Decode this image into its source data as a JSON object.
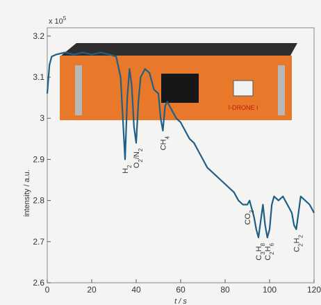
{
  "chart_data": {
    "type": "line",
    "xlabel": "t / s",
    "ylabel": "intensity / a.u.",
    "y_scale_label": "x 10",
    "y_scale_exp": "5",
    "xlim": [
      0,
      120
    ],
    "ylim": [
      2.6,
      3.22
    ],
    "x_ticks": [
      "0",
      "20",
      "40",
      "60",
      "80",
      "100",
      "120"
    ],
    "y_ticks": [
      "2.6",
      "2.7",
      "2.8",
      "2.9",
      "3",
      "3.1",
      "3.2"
    ],
    "grid": false,
    "series": [
      {
        "color": "#1f5f86",
        "points": [
          [
            0,
            3.06
          ],
          [
            1,
            3.13
          ],
          [
            2,
            3.15
          ],
          [
            4,
            3.155
          ],
          [
            8,
            3.16
          ],
          [
            12,
            3.155
          ],
          [
            16,
            3.16
          ],
          [
            20,
            3.155
          ],
          [
            24,
            3.16
          ],
          [
            28,
            3.155
          ],
          [
            31,
            3.15
          ],
          [
            33,
            3.1
          ],
          [
            34,
            3.0
          ],
          [
            35,
            2.9
          ],
          [
            36,
            3.05
          ],
          [
            37,
            3.12
          ],
          [
            38,
            3.08
          ],
          [
            39,
            2.98
          ],
          [
            40,
            2.94
          ],
          [
            41,
            3.04
          ],
          [
            42,
            3.1
          ],
          [
            44,
            3.12
          ],
          [
            46,
            3.11
          ],
          [
            48,
            3.07
          ],
          [
            50,
            3.06
          ],
          [
            51,
            3.0
          ],
          [
            52,
            2.97
          ],
          [
            53,
            3.03
          ],
          [
            54,
            3.04
          ],
          [
            56,
            3.02
          ],
          [
            58,
            3.0
          ],
          [
            60,
            2.99
          ],
          [
            62,
            2.97
          ],
          [
            64,
            2.95
          ],
          [
            66,
            2.94
          ],
          [
            68,
            2.92
          ],
          [
            70,
            2.9
          ],
          [
            72,
            2.88
          ],
          [
            74,
            2.87
          ],
          [
            76,
            2.86
          ],
          [
            78,
            2.85
          ],
          [
            80,
            2.84
          ],
          [
            82,
            2.83
          ],
          [
            84,
            2.82
          ],
          [
            86,
            2.8
          ],
          [
            88,
            2.79
          ],
          [
            90,
            2.79
          ],
          [
            91,
            2.8
          ],
          [
            92,
            2.78
          ],
          [
            93,
            2.76
          ],
          [
            94,
            2.73
          ],
          [
            95,
            2.71
          ],
          [
            96,
            2.75
          ],
          [
            97,
            2.79
          ],
          [
            98,
            2.74
          ],
          [
            99,
            2.71
          ],
          [
            100,
            2.73
          ],
          [
            101,
            2.79
          ],
          [
            102,
            2.81
          ],
          [
            104,
            2.8
          ],
          [
            106,
            2.81
          ],
          [
            108,
            2.79
          ],
          [
            110,
            2.77
          ],
          [
            111,
            2.74
          ],
          [
            112,
            2.73
          ],
          [
            113,
            2.77
          ],
          [
            114,
            2.81
          ],
          [
            116,
            2.8
          ],
          [
            118,
            2.79
          ],
          [
            120,
            2.77
          ]
        ]
      }
    ],
    "annotations": [
      {
        "text": "H2",
        "x": 35,
        "y": 2.9
      },
      {
        "text": "O2/N2",
        "x": 40,
        "y": 2.94
      },
      {
        "text": "CH4",
        "x": 52,
        "y": 2.97
      },
      {
        "text": "CO2",
        "x": 90,
        "y": 2.79
      },
      {
        "text": "C3H8",
        "x": 95,
        "y": 2.71
      },
      {
        "text": "C2H6",
        "x": 99,
        "y": 2.71
      },
      {
        "text": "C2H2",
        "x": 112,
        "y": 2.73
      }
    ],
    "inset_device_label": "I-DRONE I"
  }
}
